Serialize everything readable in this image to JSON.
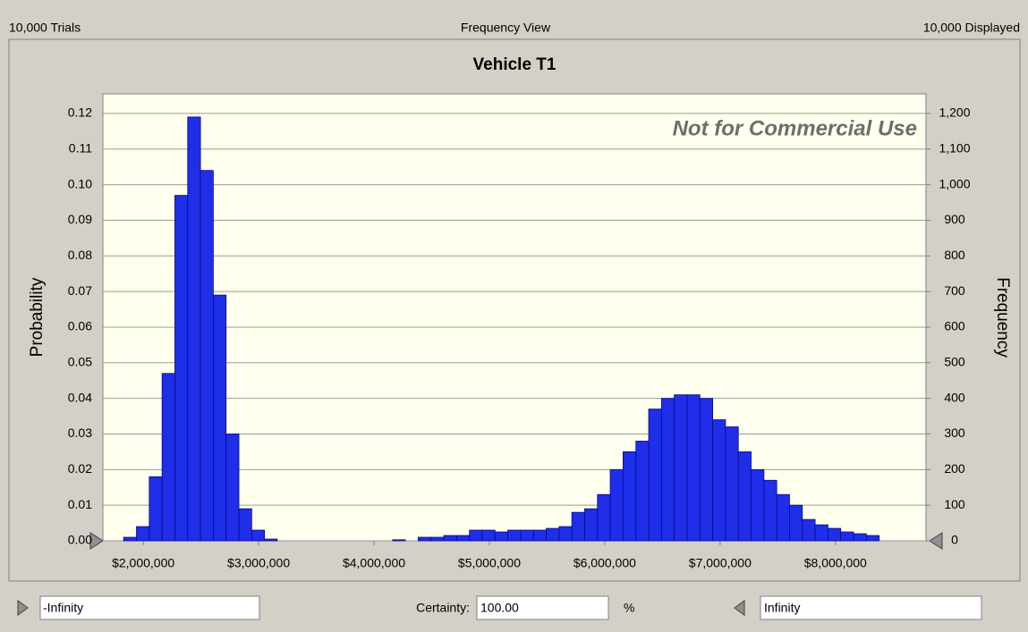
{
  "header": {
    "trials": "10,000 Trials",
    "view": "Frequency View",
    "displayed": "10,000 Displayed"
  },
  "chart_data": {
    "type": "histogram",
    "title": "Vehicle T1",
    "ylabel": "Probability",
    "y2label": "Frequency",
    "annotation": "Not for Commercial Use",
    "color": "#1f2ee8",
    "grid": true,
    "bins": [
      1830000,
      1941000,
      2052000,
      2163000,
      2274000,
      2385000,
      2496000,
      2607000,
      2718000,
      2829000,
      2940000,
      3051000,
      3162000,
      3273000,
      3384000,
      3495000,
      3606000,
      3717000,
      3828000,
      3939000,
      4050000,
      4161000,
      4272000,
      4383000,
      4494000,
      4605000,
      4716000,
      4827000,
      4938000,
      5049000,
      5160000,
      5271000,
      5382000,
      5493000,
      5604000,
      5715000,
      5826000,
      5937000,
      6048000,
      6159000,
      6270000,
      6381000,
      6492000,
      6603000,
      6714000,
      6825000,
      6936000,
      7047000,
      7158000,
      7269000,
      7380000,
      7491000,
      7602000,
      7713000,
      7824000,
      7935000,
      8046000,
      8157000,
      8268000,
      8379000
    ],
    "values": [
      0.001,
      0.004,
      0.018,
      0.047,
      0.097,
      0.119,
      0.104,
      0.069,
      0.03,
      0.009,
      0.003,
      0.0005,
      0,
      0,
      0,
      0,
      0,
      0,
      0,
      0,
      0,
      0.0003,
      0,
      0.001,
      0.001,
      0.0015,
      0.0015,
      0.003,
      0.003,
      0.0025,
      0.003,
      0.003,
      0.003,
      0.0035,
      0.004,
      0.008,
      0.009,
      0.013,
      0.02,
      0.025,
      0.028,
      0.037,
      0.04,
      0.041,
      0.041,
      0.04,
      0.034,
      0.032,
      0.025,
      0.02,
      0.017,
      0.013,
      0.01,
      0.006,
      0.0045,
      0.0035,
      0.0025,
      0.002,
      0.0015
    ],
    "xlim": [
      1650000,
      8785000
    ],
    "xticks": [
      {
        "value": 2000000,
        "label": "$2,000,000"
      },
      {
        "value": 3000000,
        "label": "$3,000,000"
      },
      {
        "value": 4000000,
        "label": "$4,000,000"
      },
      {
        "value": 5000000,
        "label": "$5,000,000"
      },
      {
        "value": 6000000,
        "label": "$6,000,000"
      },
      {
        "value": 7000000,
        "label": "$7,000,000"
      },
      {
        "value": 8000000,
        "label": "$8,000,000"
      }
    ],
    "ylim": [
      0,
      0.1255
    ],
    "yticks": [
      {
        "value": 0,
        "label": "0.00"
      },
      0.01,
      0.02,
      0.03,
      0.04,
      0.05,
      0.06,
      0.07,
      0.08,
      0.09,
      {
        "value": 0.1,
        "label": "0.10"
      },
      0.11,
      0.12
    ],
    "y2lim": [
      0,
      1255
    ],
    "y2ticks": [
      0,
      100,
      200,
      300,
      400,
      500,
      600,
      700,
      800,
      900,
      {
        "value": 1000,
        "label": "1,000"
      },
      {
        "value": 1100,
        "label": "1,100"
      },
      {
        "value": 1200,
        "label": "1,200"
      }
    ]
  },
  "footer": {
    "lower": "-Infinity",
    "certainty_label": "Certainty:",
    "certainty": "100.00",
    "unit": "%",
    "upper": "Infinity"
  }
}
